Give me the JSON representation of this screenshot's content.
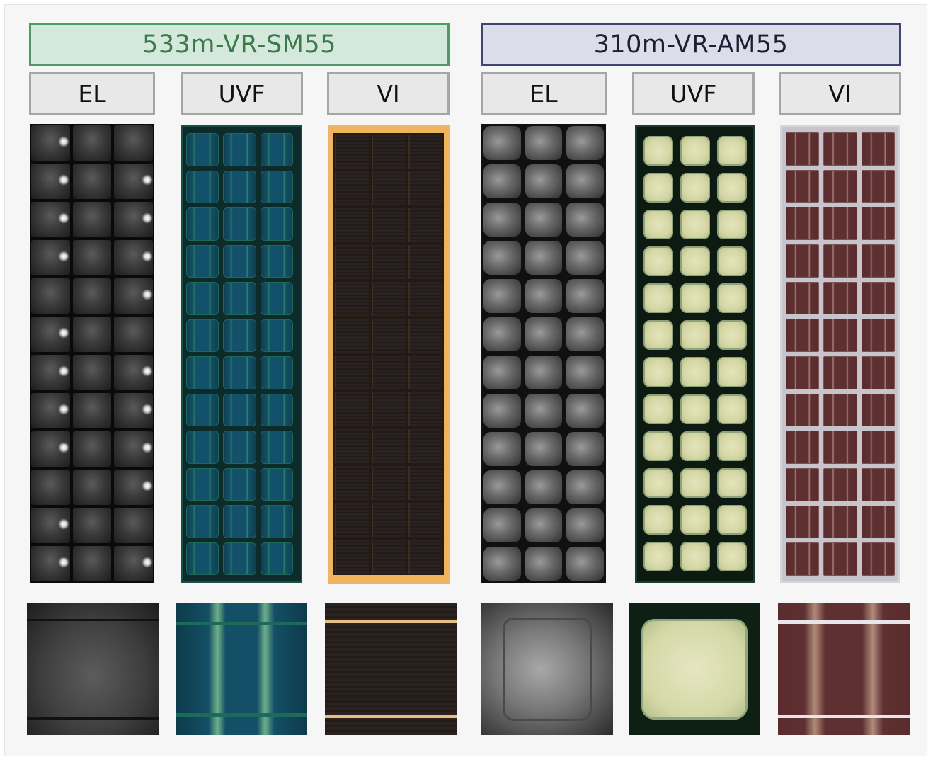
{
  "groups": [
    {
      "title": "533m-VR-SM55",
      "columns": [
        "EL",
        "UVF",
        "VI"
      ]
    },
    {
      "title": "310m-VR-AM55",
      "columns": [
        "EL",
        "UVF",
        "VI"
      ]
    }
  ],
  "colors": {
    "group1_fill": "#d5e8dc",
    "group1_border": "#4e9a62",
    "group1_text": "#3b7a4b",
    "group2_fill": "#dcdde8",
    "group2_border": "#3f4573",
    "group2_text": "#1c1e33",
    "column_header_fill": "#e8e8e8",
    "column_header_border": "#a6a6a6"
  }
}
